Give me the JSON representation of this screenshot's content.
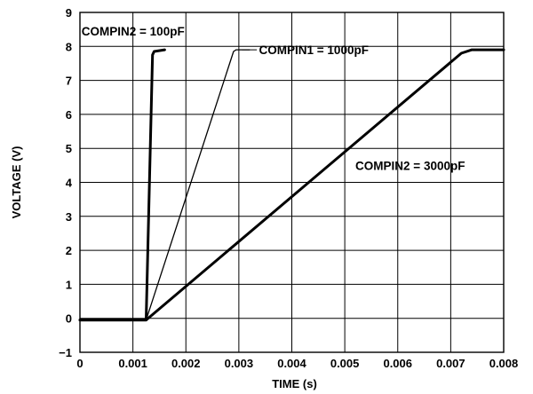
{
  "chart_data": {
    "type": "line",
    "xlabel": "TIME (s)",
    "ylabel": "VOLTAGE (V)",
    "xlim": [
      0,
      0.008
    ],
    "ylim": [
      -1,
      9
    ],
    "x_ticks": [
      "0",
      "0.001",
      "0.002",
      "0.003",
      "0.004",
      "0.005",
      "0.006",
      "0.007",
      "0.008"
    ],
    "y_ticks": [
      "−1",
      "0",
      "1",
      "2",
      "3",
      "4",
      "5",
      "6",
      "7",
      "8",
      "9"
    ],
    "grid": true,
    "series": [
      {
        "name": "COMPIN2 = 100pF",
        "stroke_width": 3,
        "x": [
          0,
          0.00125,
          0.00137,
          0.0014,
          0.0016
        ],
        "y": [
          -0.05,
          -0.05,
          7.75,
          7.85,
          7.9
        ]
      },
      {
        "name": "COMPIN1 = 1000pF",
        "stroke_width": 1.3,
        "x": [
          0,
          0.00125,
          0.0029,
          0.00295,
          0.0032
        ],
        "y": [
          -0.05,
          -0.05,
          7.85,
          7.9,
          7.9
        ]
      },
      {
        "name": "COMPIN2 = 3000pF",
        "stroke_width": 3,
        "x": [
          0,
          0.00125,
          0.0072,
          0.0074,
          0.008
        ],
        "y": [
          -0.05,
          -0.05,
          7.8,
          7.9,
          7.9
        ]
      }
    ],
    "annotations": [
      {
        "text": "COMPIN2 = 100pF",
        "at_x": 3e-05,
        "at_y": 8.45,
        "anchor": "start"
      },
      {
        "text": "COMPIN1 = 1000pF",
        "at_x": 0.00338,
        "at_y": 7.9,
        "anchor": "start",
        "leader_from_x": 0.00306,
        "leader_to_x": 0.00334,
        "leader_y": 7.9
      },
      {
        "text": "COMPIN2 = 3000pF",
        "at_x": 0.0052,
        "at_y": 4.5,
        "anchor": "start"
      }
    ]
  }
}
